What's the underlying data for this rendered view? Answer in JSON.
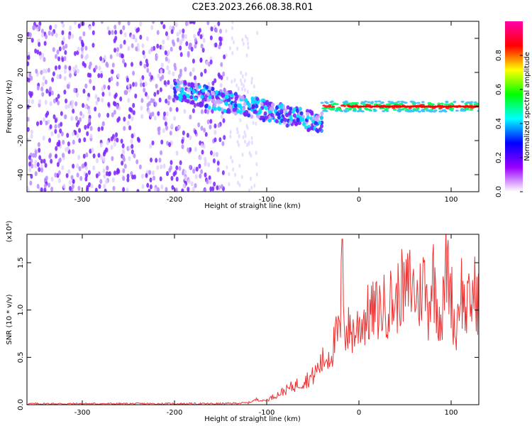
{
  "title": "C2E3.2023.266.08.38.R01",
  "chart_data": [
    {
      "type": "heatmap",
      "xlabel": "Height of straight line (km)",
      "ylabel": "Frequency (Hz)",
      "xlim": [
        -360,
        130
      ],
      "ylim": [
        -50,
        50
      ],
      "x_ticks": [
        -300,
        -200,
        -100,
        0,
        100
      ],
      "x_tick_labels": [
        "-300",
        "-200",
        "-100",
        "0",
        "100"
      ],
      "y_ticks": [
        -40,
        -20,
        0,
        20,
        40
      ],
      "y_tick_labels": [
        "-40",
        "-20",
        "0",
        "20",
        "40"
      ],
      "colorbar": {
        "label": "Normalized spectral amplitude",
        "range": [
          0,
          1
        ],
        "ticks": [
          0.0,
          0.2,
          0.4,
          0.6,
          0.8
        ],
        "tick_labels": [
          "0.0",
          "0.2",
          "0.4",
          "0.6",
          "0.8"
        ],
        "colors": [
          "#ffffff",
          "#9900ff",
          "#0000ff",
          "#00ffff",
          "#00ff00",
          "#ffff00",
          "#ff0000",
          "#ff00aa"
        ]
      },
      "grid": false,
      "regions": [
        {
          "x_range": [
            -360,
            -145
          ],
          "freq_range": [
            -50,
            50
          ],
          "amplitude": 0.1,
          "pattern": "noise"
        },
        {
          "x_range": [
            -145,
            -110
          ],
          "freq_range": [
            -50,
            50
          ],
          "amplitude": 0.03,
          "pattern": "sparse noise"
        },
        {
          "x_range": [
            -200,
            -40
          ],
          "freq_center_start": 10,
          "freq_center_end": -10,
          "amplitude": 0.35,
          "pattern": "descending band"
        },
        {
          "x_range": [
            -40,
            130
          ],
          "freq_center": 0,
          "amplitude": 0.9,
          "pattern": "narrow line"
        }
      ]
    },
    {
      "type": "line",
      "xlabel": "Height of straight line (km)",
      "ylabel": "SNR (10 * v/v)",
      "y_multiplier": "(x10⁴)",
      "xlim": [
        -360,
        130
      ],
      "ylim": [
        0,
        1.8
      ],
      "x_ticks": [
        -300,
        -200,
        -100,
        0,
        100
      ],
      "x_tick_labels": [
        "-300",
        "-200",
        "-100",
        "0",
        "100"
      ],
      "y_ticks": [
        0.0,
        0.5,
        1.0,
        1.5
      ],
      "y_tick_labels": [
        "0.0",
        "0.5",
        "1.0",
        "1.5"
      ],
      "grid": false,
      "color": "#ee3333",
      "series": [
        {
          "x": [
            -360,
            -300,
            -250,
            -200,
            -150,
            -120,
            -110,
            -105,
            -100,
            -90,
            -80,
            -70,
            -60,
            -50,
            -40,
            -30,
            -25,
            -20,
            -18,
            -15,
            -10,
            -5,
            0,
            10,
            20,
            30,
            35,
            40,
            45,
            50,
            55,
            60,
            65,
            70,
            75,
            80,
            85,
            90,
            95,
            100,
            105,
            110,
            115,
            120,
            125,
            130
          ],
          "y": [
            0.01,
            0.01,
            0.01,
            0.01,
            0.01,
            0.02,
            0.06,
            0.04,
            0.05,
            0.1,
            0.15,
            0.2,
            0.25,
            0.3,
            0.45,
            0.55,
            0.7,
            0.8,
            1.75,
            0.75,
            0.8,
            0.75,
            0.85,
            0.95,
            1.0,
            1.05,
            1.1,
            1.05,
            1.25,
            1.15,
            1.3,
            1.2,
            1.1,
            1.35,
            1.0,
            1.4,
            1.05,
            0.9,
            1.5,
            1.2,
            0.7,
            1.3,
            1.0,
            1.05,
            1.2,
            1.1
          ]
        }
      ]
    }
  ]
}
